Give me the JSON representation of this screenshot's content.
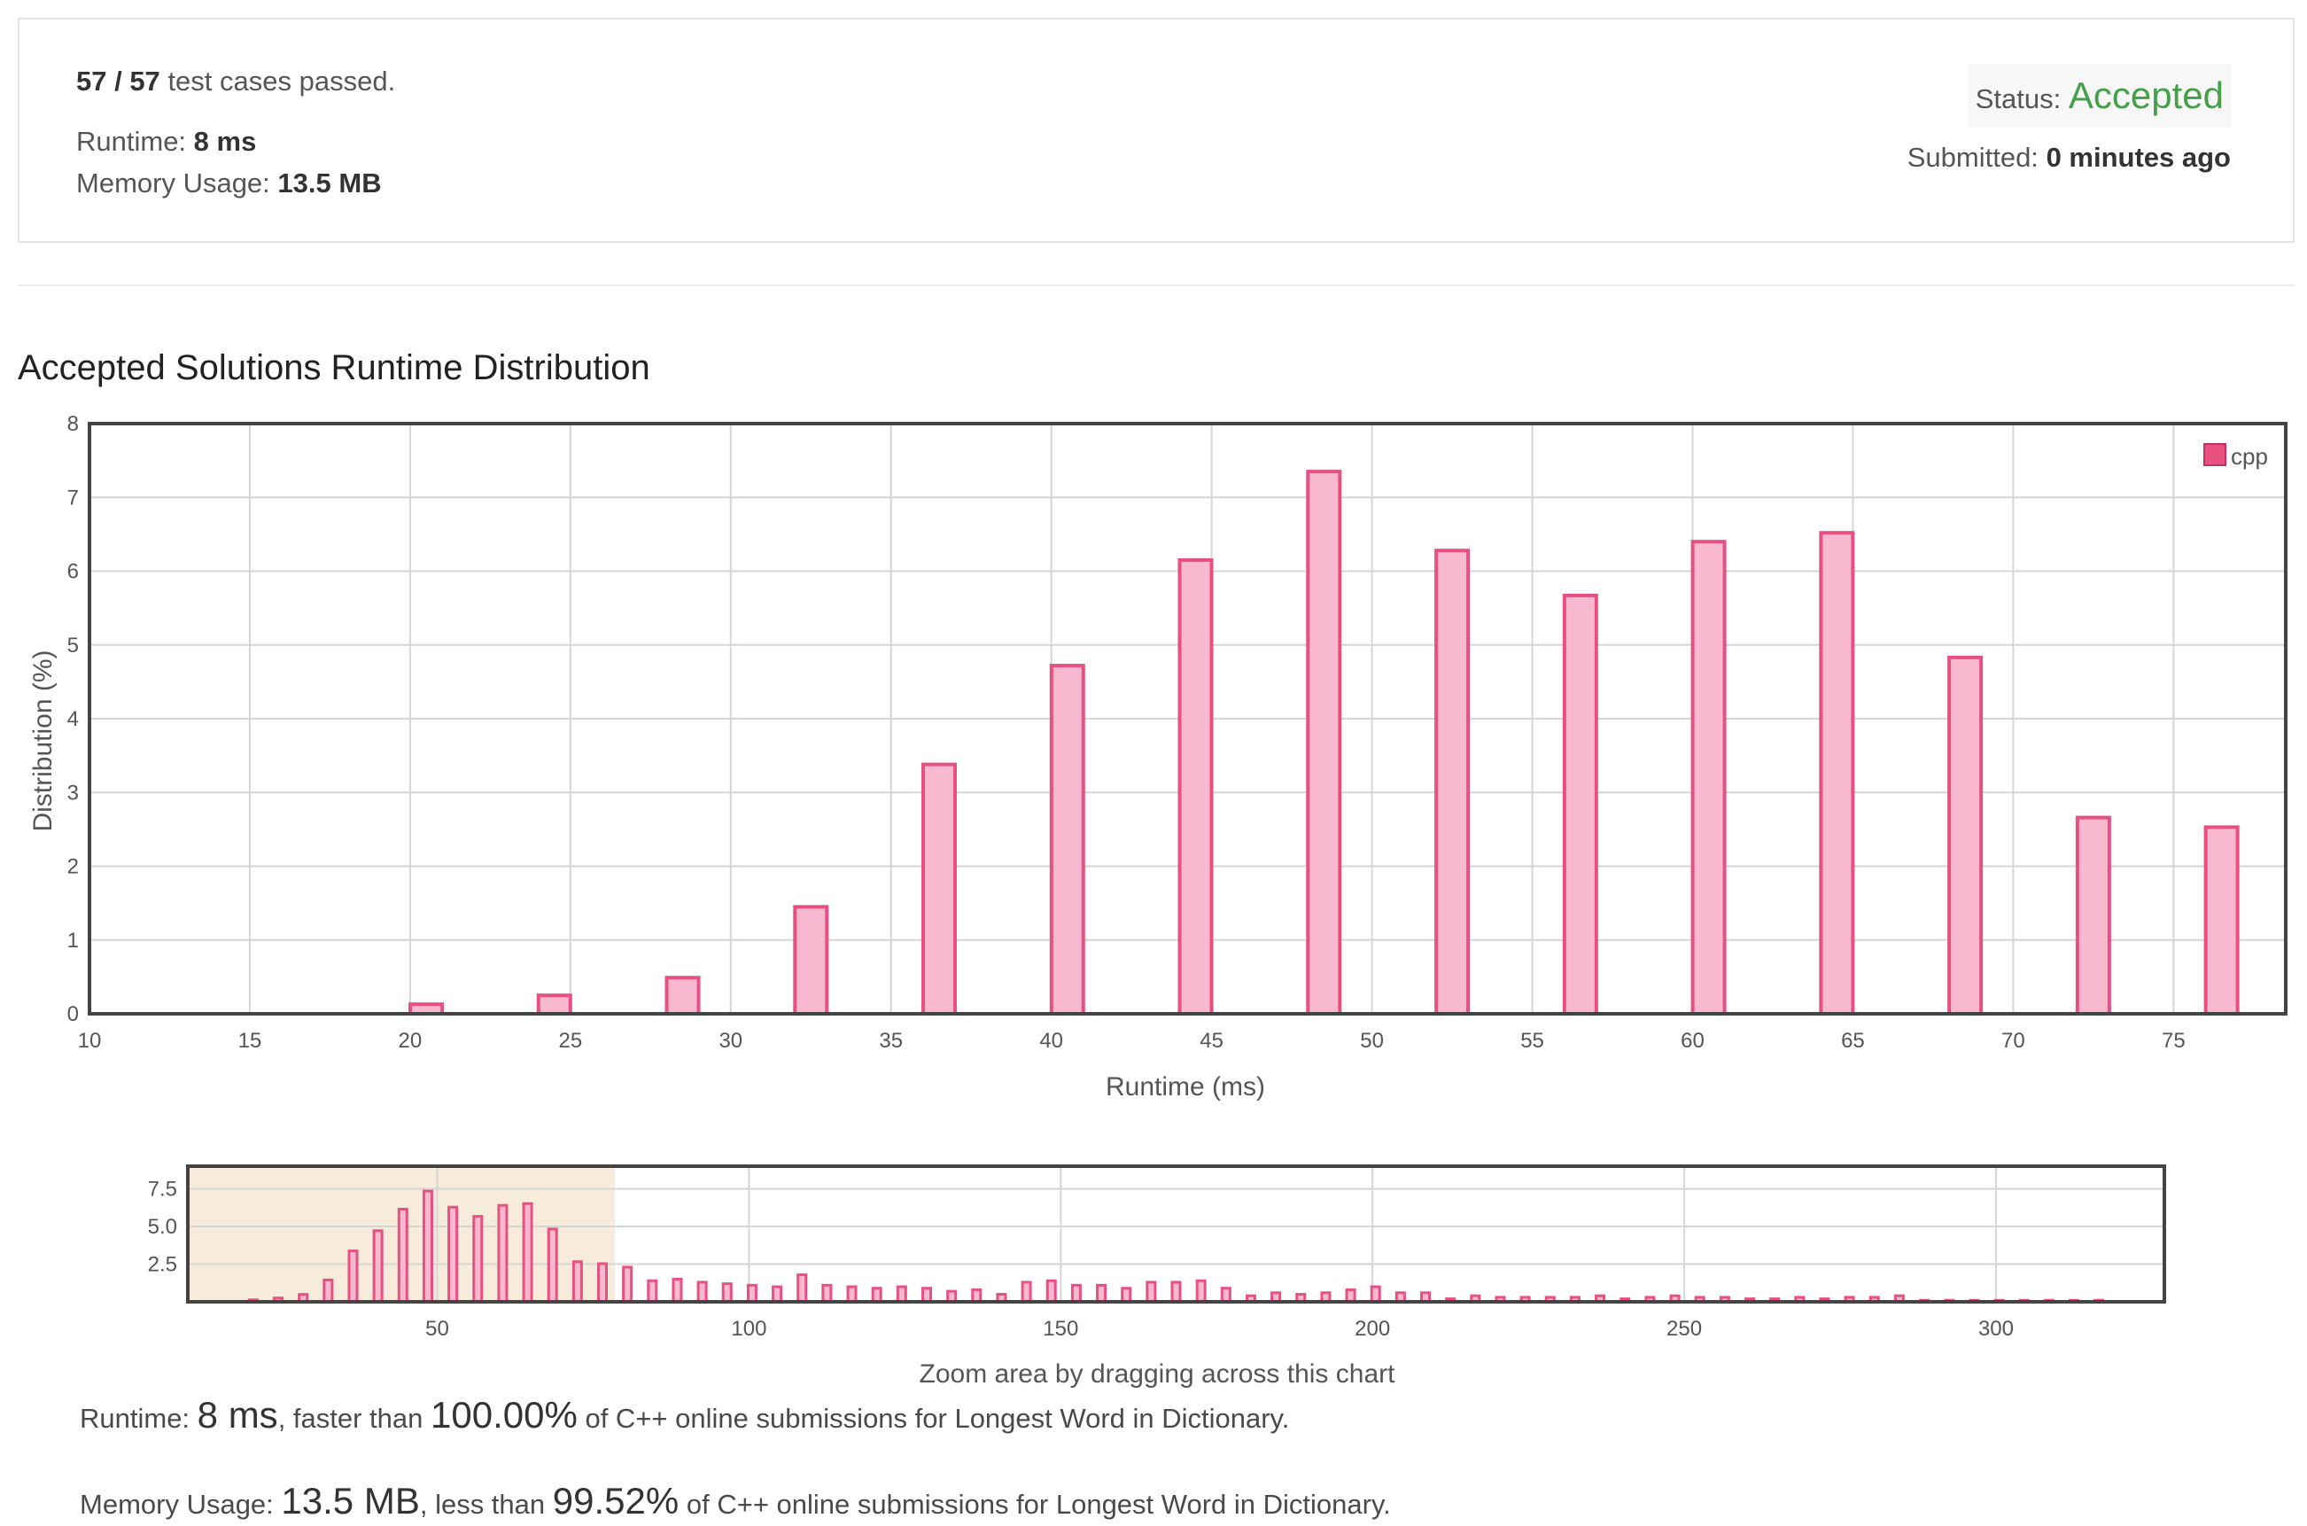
{
  "summary": {
    "passed": "57 / 57",
    "passed_suffix": "test cases passed.",
    "runtime_label": "Runtime:",
    "runtime_value": "8 ms",
    "memory_label": "Memory Usage:",
    "memory_value": "13.5 MB",
    "status_label": "Status:",
    "status_value": "Accepted",
    "submitted_label": "Submitted:",
    "submitted_value": "0 minutes ago"
  },
  "colors": {
    "bar_fill": "#f8b8cf",
    "bar_stroke": "#e8507f",
    "legend": "#e8507f",
    "status_accepted": "#43a047",
    "selection": "#f7ebdc"
  },
  "chart_data": [
    {
      "type": "bar",
      "title": "Accepted Solutions Runtime Distribution",
      "xlabel": "Runtime (ms)",
      "ylabel": "Distribution (%)",
      "xlim": [
        10,
        78.5
      ],
      "ylim": [
        0,
        8
      ],
      "xticks": [
        10,
        15,
        20,
        25,
        30,
        35,
        40,
        45,
        50,
        55,
        60,
        65,
        70,
        75
      ],
      "yticks": [
        0,
        1,
        2,
        3,
        4,
        5,
        6,
        7,
        8
      ],
      "grid": true,
      "legend": "top-right",
      "series": [
        {
          "name": "cpp",
          "x": [
            20.5,
            24.5,
            28.5,
            32.5,
            36.5,
            40.5,
            44.5,
            48.5,
            52.5,
            56.5,
            60.5,
            64.5,
            68.5,
            72.5,
            76.5
          ],
          "values": [
            0.13,
            0.25,
            0.49,
            1.45,
            3.38,
            4.72,
            6.15,
            7.35,
            6.28,
            5.67,
            6.4,
            6.52,
            4.83,
            2.66,
            2.53
          ]
        }
      ]
    },
    {
      "type": "bar",
      "xlabel": "Zoom area by dragging across this chart",
      "xlim": [
        10,
        327
      ],
      "ylim": [
        0,
        9
      ],
      "xticks": [
        50,
        100,
        150,
        200,
        250,
        300
      ],
      "yticks": [
        2.5,
        5.0,
        7.5
      ],
      "ytick_labels": [
        "2.5",
        "5.0",
        "7.5"
      ],
      "selection": [
        10,
        78.5
      ],
      "series": [
        {
          "name": "cpp",
          "x": [
            20.5,
            24.5,
            28.5,
            32.5,
            36.5,
            40.5,
            44.5,
            48.5,
            52.5,
            56.5,
            60.5,
            64.5,
            68.5,
            72.5,
            76.5,
            80.5,
            84.5,
            88.5,
            92.5,
            96.5,
            100.5,
            104.5,
            108.5,
            112.5,
            116.5,
            120.5,
            124.5,
            128.5,
            132.5,
            136.5,
            140.5,
            144.5,
            148.5,
            152.5,
            156.5,
            160.5,
            164.5,
            168.5,
            172.5,
            176.5,
            180.5,
            184.5,
            188.5,
            192.5,
            196.5,
            200.5,
            204.5,
            208.5,
            212.5,
            216.5,
            220.5,
            224.5,
            228.5,
            232.5,
            236.5,
            240.5,
            244.5,
            248.5,
            252.5,
            256.5,
            260.5,
            264.5,
            268.5,
            272.5,
            276.5,
            280.5,
            284.5,
            288.5,
            292.5,
            296.5,
            300.5,
            304.5,
            308.5,
            312.5,
            316.5
          ],
          "values": [
            0.13,
            0.25,
            0.49,
            1.45,
            3.38,
            4.72,
            6.15,
            7.35,
            6.28,
            5.67,
            6.4,
            6.52,
            4.83,
            2.66,
            2.53,
            2.3,
            1.4,
            1.5,
            1.3,
            1.2,
            1.1,
            1.0,
            1.8,
            1.1,
            1.0,
            0.9,
            1.0,
            0.9,
            0.7,
            0.8,
            0.5,
            1.3,
            1.4,
            1.1,
            1.1,
            0.9,
            1.3,
            1.3,
            1.4,
            0.9,
            0.4,
            0.6,
            0.5,
            0.6,
            0.8,
            1.0,
            0.6,
            0.6,
            0.2,
            0.4,
            0.3,
            0.3,
            0.3,
            0.3,
            0.4,
            0.2,
            0.3,
            0.4,
            0.3,
            0.3,
            0.2,
            0.2,
            0.3,
            0.2,
            0.3,
            0.3,
            0.4,
            0.1,
            0.1,
            0.1,
            0.1,
            0.1,
            0.1,
            0.1,
            0.1
          ]
        }
      ]
    }
  ],
  "stats": {
    "runtime_label": "Runtime:",
    "runtime_value": "8 ms",
    "runtime_mid": ", faster than",
    "runtime_pct": "100.00%",
    "runtime_tail": "of C++ online submissions for Longest Word in Dictionary.",
    "memory_label": "Memory Usage:",
    "memory_value": "13.5 MB",
    "memory_mid": ", less than",
    "memory_pct": "99.52%",
    "memory_tail": "of C++ online submissions for Longest Word in Dictionary."
  }
}
